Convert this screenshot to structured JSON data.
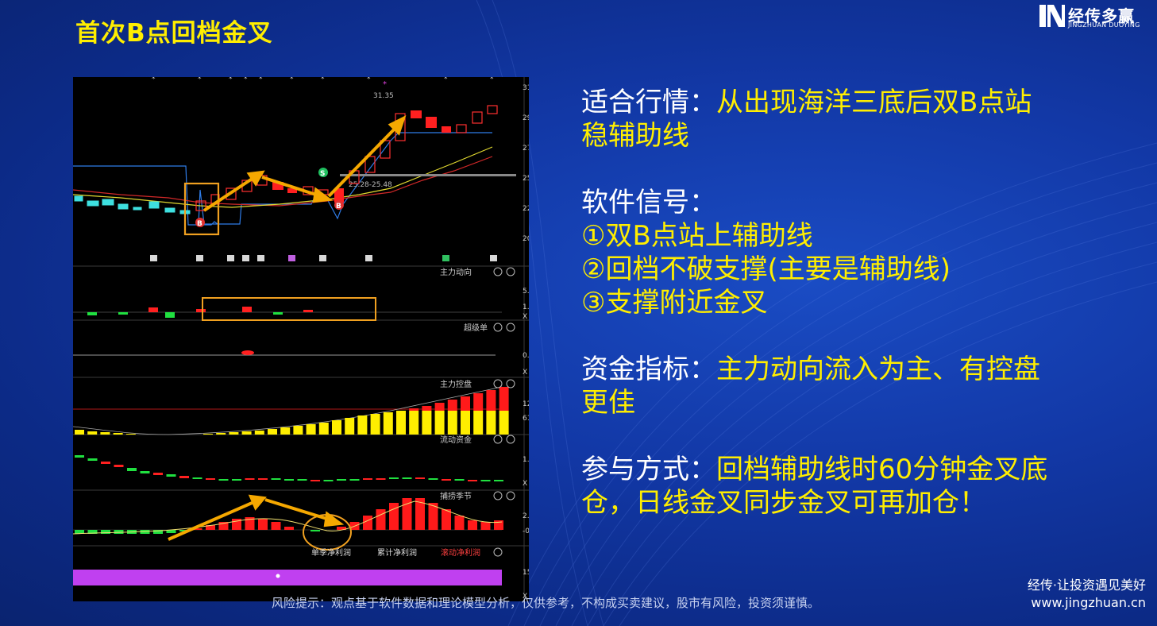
{
  "title": "首次B点回档金叉",
  "logo": {
    "main": "经传多赢",
    "sub": "JINGZHUAN DUOYING"
  },
  "chart": {
    "price_axis": [
      "31",
      "29",
      "27",
      "25",
      "22",
      "20"
    ],
    "high_label": "31.35",
    "range_label": "25.28-25.48",
    "panels": [
      "主力动向",
      "超级单",
      "主力控盘",
      "流动资金",
      "捕捞季节"
    ],
    "panel_axis": {
      "zhuli_dongxiang": [
        "5.",
        "1.",
        "X"
      ],
      "chaojidan": [
        "0.",
        "X"
      ],
      "kongpan": [
        "12",
        "61"
      ],
      "liudong": [
        "1.",
        "X"
      ],
      "bulao": [
        "2.",
        "-0"
      ],
      "bottom": [
        "15",
        "X"
      ]
    },
    "bottom_tabs": [
      "单季净利润",
      "累计净利润",
      "滚动净利润"
    ]
  },
  "content": {
    "p1_label": "适合行情：",
    "p1_text_a": "从出现海洋三底后双B点站",
    "p1_text_b": "稳辅助线",
    "p2_label": "软件信号：",
    "p2_items": [
      "①双B点站上辅助线",
      "②回档不破支撑(主要是辅助线)",
      "③支撑附近金叉"
    ],
    "p3_label": "资金指标：",
    "p3_text_a": "主力动向流入为主、有控盘",
    "p3_text_b": "更佳",
    "p4_label": "参与方式：",
    "p4_text_a": "回档辅助线时60分钟金叉底",
    "p4_text_b": "仓，日线金叉同步金叉可再加仓！"
  },
  "footer": {
    "note": "风险提示：观点基于软件数据和理论模型分析，仅供参考，不构成买卖建议，股市有风险，投资须谨慎。",
    "slogan": "经传·让投资遇见美好",
    "url": "www.jingzhuan.cn"
  }
}
